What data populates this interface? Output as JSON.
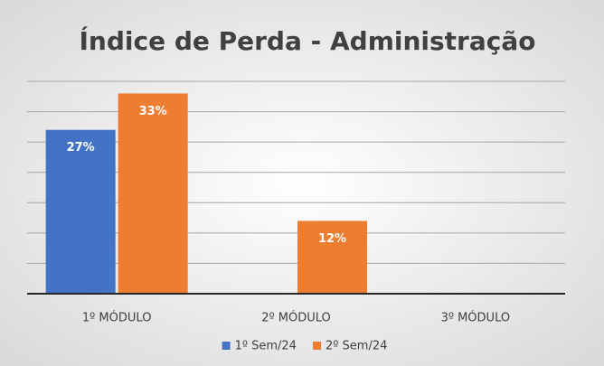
{
  "chart_data": {
    "type": "bar",
    "title": "Índice de Perda - Administração",
    "categories": [
      "1º MÓDULO",
      "2º MÓDULO",
      "3º MÓDULO"
    ],
    "series": [
      {
        "name": "1º Sem/24",
        "color": "#4472c4",
        "values": [
          27,
          null,
          null
        ],
        "value_labels": [
          "27%",
          null,
          null
        ]
      },
      {
        "name": "2º Sem/24",
        "color": "#ed7d31",
        "values": [
          33,
          12,
          null
        ],
        "value_labels": [
          "33%",
          "12%",
          null
        ]
      }
    ],
    "ylim": [
      0,
      35
    ],
    "yticks": [
      0,
      5,
      10,
      15,
      20,
      25,
      30,
      35
    ],
    "grid": true,
    "legend": "bottom"
  }
}
